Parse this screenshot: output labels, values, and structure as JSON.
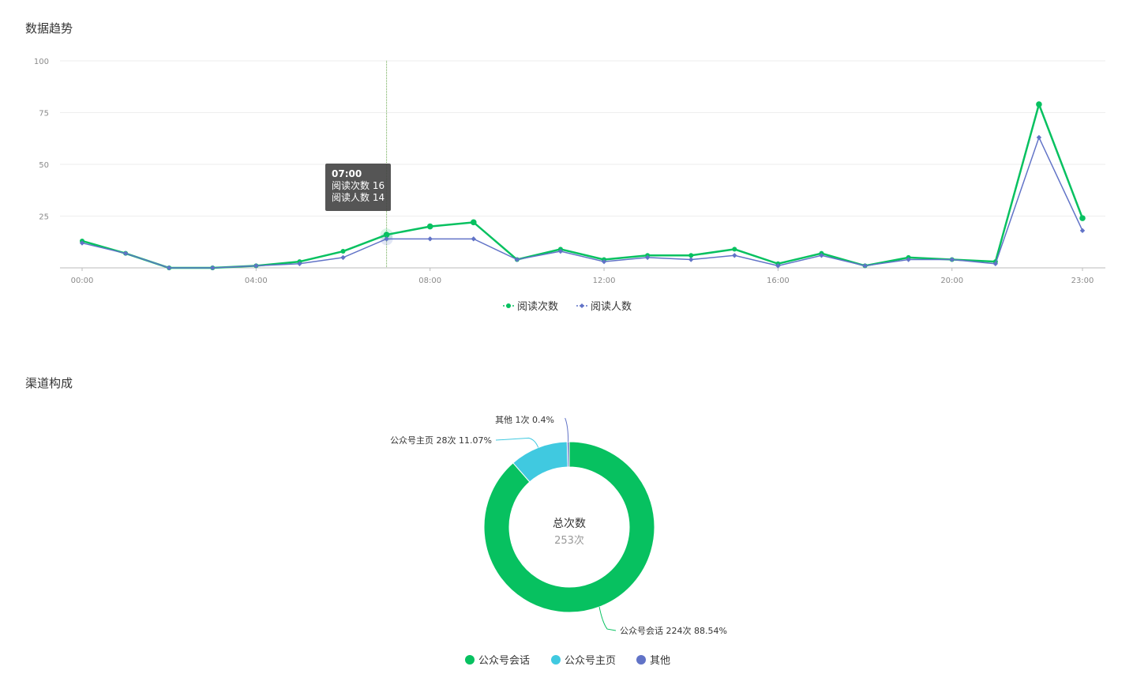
{
  "sections": {
    "trend_title": "数据趋势",
    "channel_title": "渠道构成"
  },
  "tooltip": {
    "time": "07:00",
    "line1": "阅读次数 16",
    "line2": "阅读人数 14"
  },
  "colors": {
    "green": "#07c160",
    "purple": "#6173c7",
    "cyan": "#40c9e0",
    "grid": "#eeeeee",
    "axis": "#bbbbbb"
  },
  "chart_data": [
    {
      "type": "line",
      "x": [
        "00:00",
        "01:00",
        "02:00",
        "03:00",
        "04:00",
        "05:00",
        "06:00",
        "07:00",
        "08:00",
        "09:00",
        "10:00",
        "11:00",
        "12:00",
        "13:00",
        "14:00",
        "15:00",
        "16:00",
        "17:00",
        "18:00",
        "19:00",
        "20:00",
        "21:00",
        "22:00",
        "23:00"
      ],
      "x_tick_labels": [
        "00:00",
        "04:00",
        "08:00",
        "12:00",
        "16:00",
        "20:00",
        "23:00"
      ],
      "y_ticks": [
        "100",
        "75",
        "50",
        "25"
      ],
      "ylim": [
        0,
        100
      ],
      "grid": true,
      "legend_position": "bottom-center",
      "series": [
        {
          "name": "阅读次数",
          "color": "#07c160",
          "values": [
            13,
            7,
            0,
            0,
            1,
            3,
            8,
            16,
            20,
            22,
            4,
            9,
            4,
            6,
            6,
            9,
            2,
            7,
            1,
            5,
            4,
            3,
            79,
            24
          ]
        },
        {
          "name": "阅读人数",
          "color": "#6173c7",
          "values": [
            12,
            7,
            0,
            0,
            1,
            2,
            5,
            14,
            14,
            14,
            4,
            8,
            3,
            5,
            4,
            6,
            1,
            6,
            1,
            4,
            4,
            2,
            63,
            18
          ]
        }
      ]
    },
    {
      "type": "pie",
      "center_label": "总次数",
      "center_value": "253次",
      "legend_position": "bottom-center",
      "slices": [
        {
          "name": "公众号会话",
          "value": 224,
          "label": "公众号会话 224次 88.54%",
          "color": "#07c160"
        },
        {
          "name": "公众号主页",
          "value": 28,
          "label": "公众号主页 28次 11.07%",
          "color": "#40c9e0"
        },
        {
          "name": "其他",
          "value": 1,
          "label": "其他 1次 0.4%",
          "color": "#6173c7"
        }
      ]
    }
  ]
}
